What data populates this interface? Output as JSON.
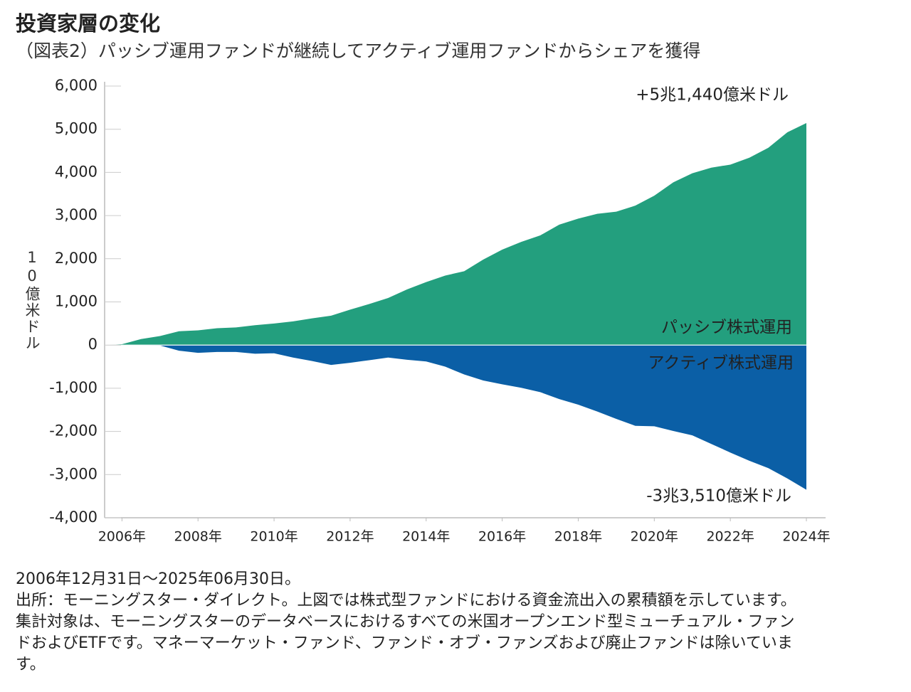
{
  "chart_data": {
    "type": "area",
    "title": "投資家層の変化",
    "subtitle": "（図表2）パッシブ運用ファンドが継続してアクティブ運用ファンドからシェアを獲得",
    "y_label": "10億米ドル",
    "x": [
      2005.6,
      2006.0,
      2006.5,
      2007.0,
      2007.5,
      2008.0,
      2008.5,
      2009.0,
      2009.5,
      2010.0,
      2010.5,
      2011.0,
      2011.5,
      2012.0,
      2012.5,
      2013.0,
      2013.5,
      2014.0,
      2014.5,
      2015.0,
      2015.5,
      2016.0,
      2016.5,
      2017.0,
      2017.5,
      2018.0,
      2018.5,
      2019.0,
      2019.5,
      2020.0,
      2020.5,
      2021.0,
      2021.5,
      2022.0,
      2022.5,
      2023.0,
      2023.5,
      2024.0
    ],
    "series": [
      {
        "name": "パッシブ株式運用",
        "color": "#239f7e",
        "values": [
          0,
          20,
          140,
          210,
          320,
          340,
          390,
          410,
          460,
          500,
          550,
          620,
          680,
          820,
          950,
          1090,
          1290,
          1460,
          1610,
          1710,
          1980,
          2210,
          2390,
          2540,
          2790,
          2930,
          3040,
          3090,
          3230,
          3460,
          3770,
          3980,
          4110,
          4180,
          4340,
          4570,
          4930,
          5144
        ]
      },
      {
        "name": "アクティブ株式運用",
        "color": "#0b5fa6",
        "values": [
          0,
          0,
          0,
          -10,
          -130,
          -180,
          -160,
          -160,
          -200,
          -190,
          -290,
          -370,
          -460,
          -410,
          -350,
          -290,
          -340,
          -380,
          -500,
          -680,
          -820,
          -910,
          -990,
          -1090,
          -1250,
          -1380,
          -1540,
          -1710,
          -1870,
          -1880,
          -1990,
          -2090,
          -2290,
          -2490,
          -2680,
          -2850,
          -3090,
          -3351
        ]
      }
    ],
    "annotations": [
      "+5兆1,440億米ドル",
      "-3兆3,510億米ドル"
    ],
    "xlim": [
      2005.6,
      2024.0
    ],
    "xticks": [
      {
        "value": 2006,
        "label": "2006年"
      },
      {
        "value": 2008,
        "label": "2008年"
      },
      {
        "value": 2010,
        "label": "2010年"
      },
      {
        "value": 2012,
        "label": "2012年"
      },
      {
        "value": 2014,
        "label": "2014年"
      },
      {
        "value": 2016,
        "label": "2016年"
      },
      {
        "value": 2018,
        "label": "2018年"
      },
      {
        "value": 2020,
        "label": "2020年"
      },
      {
        "value": 2022,
        "label": "2022年"
      },
      {
        "value": 2024,
        "label": "2024年"
      }
    ],
    "ylim": [
      -4000,
      6000
    ],
    "yticks": [
      {
        "value": 6000,
        "label": "6,000"
      },
      {
        "value": 5000,
        "label": "5,000"
      },
      {
        "value": 4000,
        "label": "4,000"
      },
      {
        "value": 3000,
        "label": "3,000"
      },
      {
        "value": 2000,
        "label": "2,000"
      },
      {
        "value": 1000,
        "label": "1,000"
      },
      0,
      {
        "value": -1000,
        "label": "-1,000"
      },
      {
        "value": -2000,
        "label": "-2,000"
      },
      {
        "value": -3000,
        "label": "-3,000"
      },
      {
        "value": -4000,
        "label": "-4,000"
      }
    ],
    "grid": false,
    "notes": [
      "2006年12月31日～2025年06月30日。",
      "出所：モーニングスター・ダイレクト。上図では株式型ファンドにおける資金流出入の累積額を示しています。集計対象は、モーニングスターのデータベースにおけるすべての米国オープンエンド型ミューチュアル・ファンドおよびETFです。マネーマーケット・ファンド、ファンド・オブ・ファンズおよび廃止ファンドは除いています。"
    ]
  }
}
